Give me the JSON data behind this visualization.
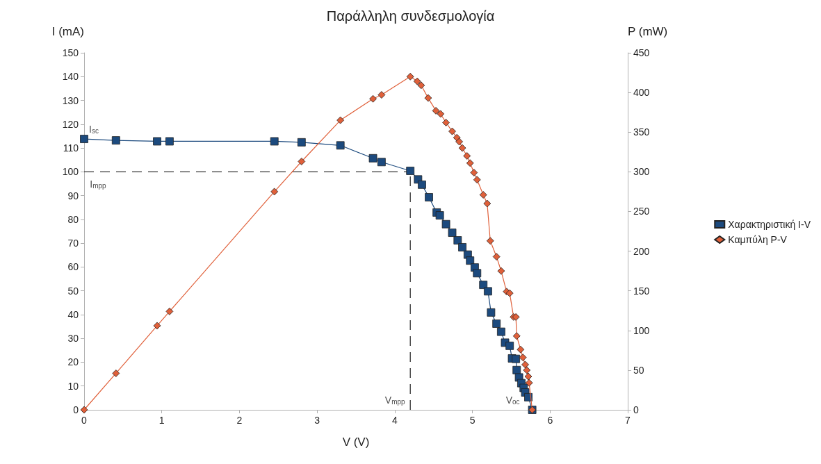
{
  "chart_data": {
    "type": "line",
    "title": "Παράλληλη συνδεσμολογία",
    "xlabel": "V (V)",
    "ylabel": "I (mA)",
    "y2label": "P (mW)",
    "xlim": [
      0,
      7
    ],
    "xticks": [
      0,
      1,
      2,
      3,
      4,
      5,
      6,
      7
    ],
    "ylim": [
      0,
      150
    ],
    "yticks": [
      0,
      10,
      20,
      30,
      40,
      50,
      60,
      70,
      80,
      90,
      100,
      110,
      120,
      130,
      140,
      150
    ],
    "y2lim": [
      0,
      450
    ],
    "y2ticks": [
      0,
      50,
      100,
      150,
      200,
      250,
      300,
      350,
      400,
      450
    ],
    "grid": false,
    "legend": "right",
    "series": [
      {
        "name": "Χαρακτηριστική I-V",
        "color": "#1c4a7e",
        "marker": "square",
        "x": [
          0,
          0.41,
          0.94,
          1.1,
          2.45,
          2.8,
          3.3,
          3.72,
          3.83,
          4.2,
          4.3,
          4.35,
          4.44,
          4.54,
          4.58,
          4.66,
          4.74,
          4.81,
          4.87,
          4.94,
          4.97,
          5.03,
          5.06,
          5.14,
          5.2,
          5.24,
          5.31,
          5.37,
          5.42,
          5.48,
          5.51,
          5.56,
          5.57,
          5.6,
          5.63,
          5.66,
          5.68,
          5.72,
          5.77
        ],
        "values": [
          113.8,
          113.2,
          112.8,
          112.8,
          112.8,
          112.4,
          111.1,
          105.7,
          104.1,
          100.4,
          96.8,
          94.6,
          89.3,
          82.9,
          81.7,
          78,
          74.4,
          71.2,
          68.3,
          65.2,
          62.7,
          59.8,
          57.4,
          52.5,
          49.8,
          40.9,
          36.2,
          32.8,
          28.2,
          26.9,
          21.6,
          21.4,
          16.7,
          13.6,
          11.2,
          9.2,
          7.3,
          5.3,
          0
        ]
      },
      {
        "name": "Καμπύλη P-V",
        "color": "#e0603a",
        "marker": "diamond",
        "axis": "y2",
        "x": [
          0,
          0.41,
          0.94,
          1.1,
          2.45,
          2.8,
          3.3,
          3.72,
          3.83,
          4.2,
          4.29,
          4.34,
          4.43,
          4.53,
          4.59,
          4.66,
          4.74,
          4.8,
          4.83,
          4.87,
          4.93,
          4.97,
          5.02,
          5.06,
          5.14,
          5.19,
          5.23,
          5.31,
          5.37,
          5.44,
          5.48,
          5.53,
          5.56,
          5.57,
          5.62,
          5.65,
          5.68,
          5.7,
          5.72,
          5.73,
          5.77
        ],
        "values": [
          0,
          46,
          106,
          124,
          275,
          313,
          365,
          392,
          397,
          420,
          414,
          409,
          393,
          377,
          373,
          362,
          351,
          343,
          338,
          330,
          320,
          311,
          299,
          290,
          271,
          260,
          213,
          193,
          175,
          149,
          147,
          117,
          117,
          93,
          76,
          66,
          57,
          50,
          42,
          34,
          0
        ]
      }
    ],
    "ref_lines": [
      {
        "axis": "y",
        "value": 100,
        "label": "I$_{mpp}$",
        "color": "#333333",
        "line_style": "dashed"
      },
      {
        "axis": "x",
        "value": 4.2,
        "label": "V$_{mpp}$",
        "color": "#333333",
        "line_style": "dashed"
      }
    ],
    "annotations": [
      {
        "text": "I$_{sc}$",
        "x": 0,
        "y": 113.8
      },
      {
        "text": "V$_{oc}$",
        "x": 5.77,
        "y": 0
      }
    ]
  }
}
